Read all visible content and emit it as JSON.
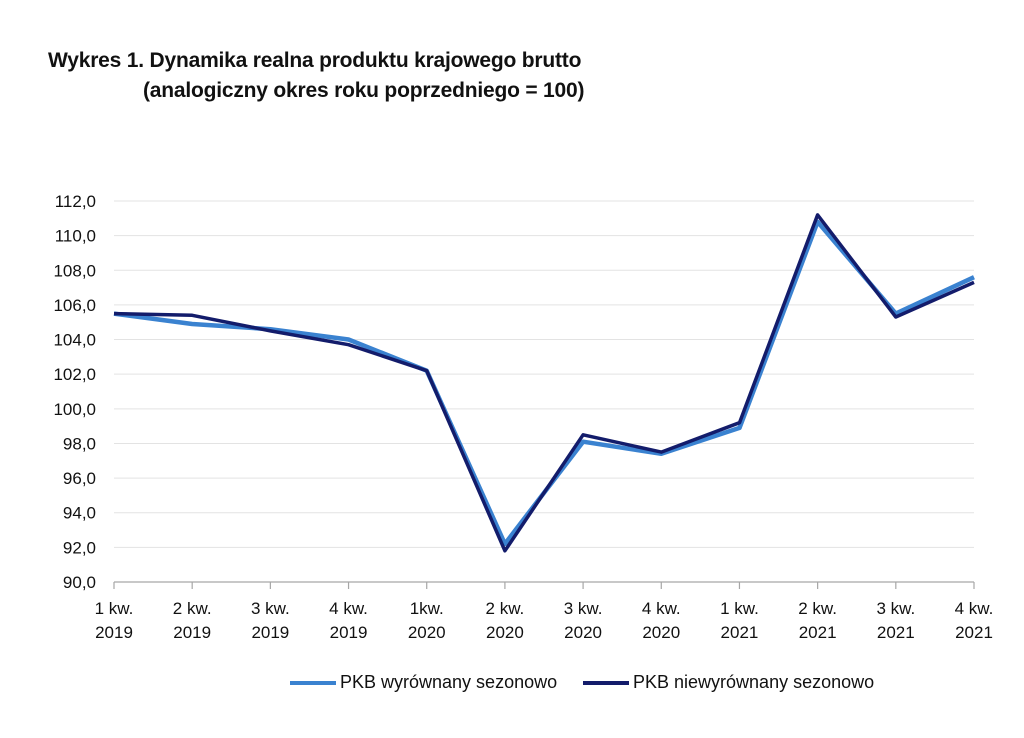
{
  "title": {
    "line1": "Wykres 1. Dynamika realna produktu krajowego brutto",
    "line2": "(analogiczny okres roku poprzedniego = 100)"
  },
  "chart_data": {
    "type": "line",
    "title": "Wykres 1. Dynamika realna produktu krajowego brutto (analogiczny okres roku poprzedniego = 100)",
    "categories": [
      [
        "1 kw.",
        "2019"
      ],
      [
        "2 kw.",
        "2019"
      ],
      [
        "3 kw.",
        "2019"
      ],
      [
        "4 kw.",
        "2019"
      ],
      [
        "1kw.",
        "2020"
      ],
      [
        "2 kw.",
        "2020"
      ],
      [
        "3 kw.",
        "2020"
      ],
      [
        "4 kw.",
        "2020"
      ],
      [
        "1 kw.",
        "2021"
      ],
      [
        "2 kw.",
        "2021"
      ],
      [
        "3 kw.",
        "2021"
      ],
      [
        "4 kw.",
        "2021"
      ]
    ],
    "yticks": [
      "90,0",
      "92,0",
      "94,0",
      "96,0",
      "98,0",
      "100,0",
      "102,0",
      "104,0",
      "106,0",
      "108,0",
      "110,0",
      "112,0"
    ],
    "ylim": [
      90,
      112
    ],
    "grid": true,
    "series": [
      {
        "name": "PKB wyrównany sezonowo",
        "color": "#3a82d0",
        "values": [
          105.5,
          104.9,
          104.6,
          104.0,
          102.2,
          92.2,
          98.1,
          97.4,
          98.9,
          110.8,
          105.5,
          107.6
        ]
      },
      {
        "name": "PKB niewyrównany sezonowo",
        "color": "#131c6b",
        "values": [
          105.5,
          105.4,
          104.5,
          103.7,
          102.2,
          91.8,
          98.5,
          97.5,
          99.2,
          111.2,
          105.3,
          107.3
        ]
      }
    ],
    "legend_position": "bottom"
  }
}
